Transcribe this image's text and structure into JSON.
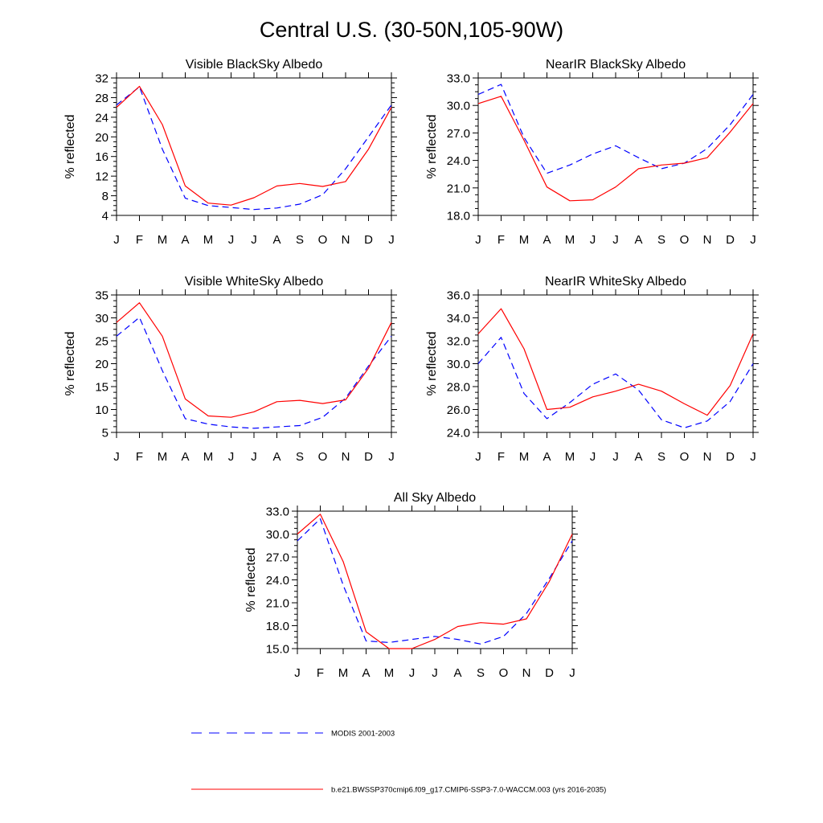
{
  "figure": {
    "title": "Central U.S. (30-50N,105-90W)"
  },
  "legend": {
    "entries": [
      {
        "label": "MODIS 2001-2003",
        "color": "#0000ff",
        "style": "dashed"
      },
      {
        "label": "b.e21.BWSSP370cmip6.f09_g17.CMIP6-SSP3-7.0-WACCM.003 (yrs 2016-2035)",
        "color": "#ff0000",
        "style": "solid"
      }
    ]
  },
  "chart_data": [
    {
      "type": "line",
      "title": "Visible BlackSky Albedo",
      "ylabel": "% reflected",
      "categories": [
        "J",
        "F",
        "M",
        "A",
        "M",
        "J",
        "J",
        "A",
        "S",
        "O",
        "N",
        "D",
        "J"
      ],
      "ylim": [
        4,
        32
      ],
      "yticks": [
        "4",
        "8",
        "12",
        "16",
        "20",
        "24",
        "28",
        "32"
      ],
      "series": [
        {
          "name": "MODIS 2001-2003",
          "color": "#0000ff",
          "style": "dashed",
          "values": [
            26.5,
            30.2,
            17.5,
            7.5,
            6.0,
            5.6,
            5.2,
            5.5,
            6.3,
            8.2,
            13.5,
            20.0,
            26.5
          ]
        },
        {
          "name": "b.e21.BWSSP370cmip6.f09_g17.CMIP6-SSP3-7.0-WACCM.003 (yrs 2016-2035)",
          "color": "#ff0000",
          "style": "solid",
          "values": [
            26.0,
            30.3,
            22.5,
            10.0,
            6.5,
            6.1,
            7.6,
            10.0,
            10.5,
            9.9,
            10.9,
            17.5,
            26.0
          ]
        }
      ]
    },
    {
      "type": "line",
      "title": "NearIR BlackSky Albedo",
      "ylabel": "% reflected",
      "categories": [
        "J",
        "F",
        "M",
        "A",
        "M",
        "J",
        "J",
        "A",
        "S",
        "O",
        "N",
        "D",
        "J"
      ],
      "ylim": [
        18,
        33
      ],
      "yticks": [
        "18.0",
        "21.0",
        "24.0",
        "27.0",
        "30.0",
        "33.0"
      ],
      "series": [
        {
          "name": "MODIS 2001-2003",
          "color": "#0000ff",
          "style": "dashed",
          "values": [
            31.2,
            32.3,
            26.5,
            22.6,
            23.5,
            24.7,
            25.6,
            24.3,
            23.1,
            23.7,
            25.3,
            27.9,
            31.2
          ]
        },
        {
          "name": "b.e21.BWSSP370cmip6.f09_g17.CMIP6-SSP3-7.0-WACCM.003 (yrs 2016-2035)",
          "color": "#ff0000",
          "style": "solid",
          "values": [
            30.2,
            31.0,
            26.2,
            21.1,
            19.6,
            19.7,
            21.1,
            23.1,
            23.5,
            23.7,
            24.3,
            27.1,
            30.2
          ]
        }
      ]
    },
    {
      "type": "line",
      "title": "Visible WhiteSky Albedo",
      "ylabel": "% reflected",
      "categories": [
        "J",
        "F",
        "M",
        "A",
        "M",
        "J",
        "J",
        "A",
        "S",
        "O",
        "N",
        "D",
        "J"
      ],
      "ylim": [
        5,
        35
      ],
      "yticks": [
        "5",
        "10",
        "15",
        "20",
        "25",
        "30",
        "35"
      ],
      "series": [
        {
          "name": "MODIS 2001-2003",
          "color": "#0000ff",
          "style": "dashed",
          "values": [
            26.0,
            30.1,
            18.5,
            8.0,
            6.8,
            6.2,
            5.9,
            6.2,
            6.5,
            8.3,
            12.5,
            19.5,
            26.0
          ]
        },
        {
          "name": "b.e21.BWSSP370cmip6.f09_g17.CMIP6-SSP3-7.0-WACCM.003 (yrs 2016-2035)",
          "color": "#ff0000",
          "style": "solid",
          "values": [
            29.0,
            33.3,
            26.0,
            12.3,
            8.6,
            8.3,
            9.5,
            11.7,
            12.0,
            11.3,
            12.1,
            19.0,
            29.0
          ]
        }
      ]
    },
    {
      "type": "line",
      "title": "NearIR WhiteSky Albedo",
      "ylabel": "% reflected",
      "categories": [
        "J",
        "F",
        "M",
        "A",
        "M",
        "J",
        "J",
        "A",
        "S",
        "O",
        "N",
        "D",
        "J"
      ],
      "ylim": [
        24,
        36
      ],
      "yticks": [
        "24.0",
        "26.0",
        "28.0",
        "30.0",
        "32.0",
        "34.0",
        "36.0"
      ],
      "series": [
        {
          "name": "MODIS 2001-2003",
          "color": "#0000ff",
          "style": "dashed",
          "values": [
            30.0,
            32.3,
            27.4,
            25.2,
            26.6,
            28.2,
            29.1,
            27.7,
            25.1,
            24.4,
            25.0,
            26.7,
            30.0
          ]
        },
        {
          "name": "b.e21.BWSSP370cmip6.f09_g17.CMIP6-SSP3-7.0-WACCM.003 (yrs 2016-2035)",
          "color": "#ff0000",
          "style": "solid",
          "values": [
            32.6,
            34.8,
            31.3,
            26.0,
            26.2,
            27.1,
            27.6,
            28.2,
            27.6,
            26.5,
            25.5,
            28.1,
            32.6
          ]
        }
      ]
    },
    {
      "type": "line",
      "title": "All Sky Albedo",
      "ylabel": "% reflected",
      "categories": [
        "J",
        "F",
        "M",
        "A",
        "M",
        "J",
        "J",
        "A",
        "S",
        "O",
        "N",
        "D",
        "J"
      ],
      "ylim": [
        15,
        33
      ],
      "yticks": [
        "15.0",
        "18.0",
        "21.0",
        "24.0",
        "27.0",
        "30.0",
        "33.0"
      ],
      "series": [
        {
          "name": "MODIS 2001-2003",
          "color": "#0000ff",
          "style": "dashed",
          "values": [
            29.1,
            32.0,
            23.3,
            16.0,
            15.8,
            16.2,
            16.6,
            16.2,
            15.6,
            16.6,
            19.6,
            24.2,
            29.1
          ]
        },
        {
          "name": "b.e21.BWSSP370cmip6.f09_g17.CMIP6-SSP3-7.0-WACCM.003 (yrs 2016-2035)",
          "color": "#ff0000",
          "style": "solid",
          "values": [
            30.0,
            32.6,
            26.4,
            17.2,
            15.0,
            15.0,
            16.2,
            17.9,
            18.4,
            18.2,
            18.9,
            23.8,
            30.0
          ]
        }
      ]
    }
  ]
}
